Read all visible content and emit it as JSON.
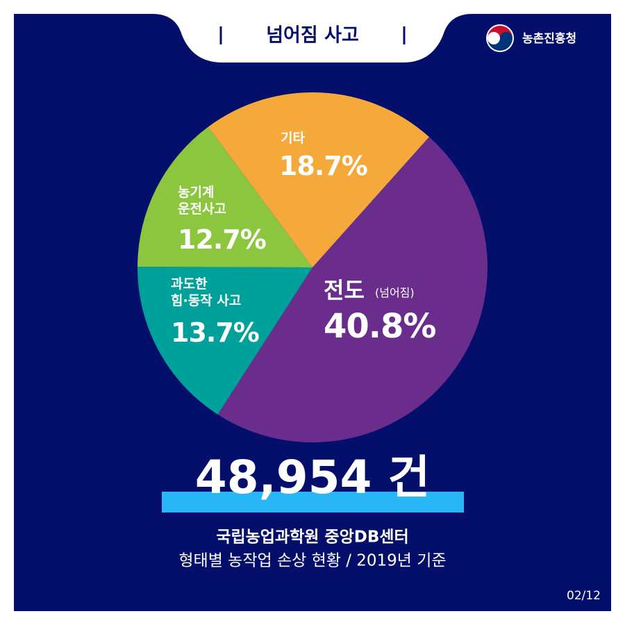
{
  "header": {
    "title": "넘어짐 사고",
    "logo": "농촌진흥청"
  },
  "chart_data": {
    "type": "pie",
    "categories": [
      "전도",
      "과도한\n힘·동작 사고",
      "농기계\n운전사고",
      "기타"
    ],
    "category_note": "(넘어짐)",
    "values": [
      40.8,
      13.7,
      12.7,
      18.7
    ],
    "value_labels": [
      "40.8%",
      "13.7%",
      "12.7%",
      "18.7%"
    ],
    "colors": [
      "#6a2d8c",
      "#00a19a",
      "#8cc63f",
      "#f6a93b"
    ]
  },
  "total": "48,954 건",
  "source": [
    "국립농업과학원 중앙DB센터",
    "형태별 농작업 손상 현황 / 2019년 기준"
  ],
  "page": "02/12"
}
